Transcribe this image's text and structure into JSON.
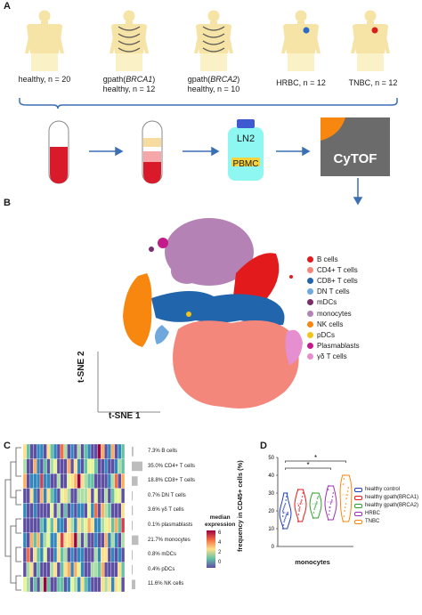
{
  "panels": {
    "a": "A",
    "b": "B",
    "c": "C",
    "d": "D"
  },
  "groups": [
    {
      "html": "healthy, n = 20"
    },
    {
      "html": "gpath(<i>BRCA1</i>)<br>healthy, n = 12"
    },
    {
      "html": "gpath(<i>BRCA2</i>)<br>healthy, n = 10"
    },
    {
      "html": "HRBC, n = 12"
    },
    {
      "html": "TNBC, n = 12"
    }
  ],
  "workflow": {
    "ln2_label": "LN2",
    "pbmc_label": "PBMC",
    "cytof_label": "CyTOF"
  },
  "tsne": {
    "xlabel": "t-SNE 1",
    "ylabel": "t-SNE 2",
    "legend": [
      {
        "label": "B cells",
        "color": "#e31a1c"
      },
      {
        "label": "CD4+ T cells",
        "color": "#f4877c"
      },
      {
        "label": "CD8+ T cells",
        "color": "#2166ac"
      },
      {
        "label": "DN T cells",
        "color": "#6fa8dc"
      },
      {
        "label": "mDCs",
        "color": "#7b2d6a"
      },
      {
        "label": "monocytes",
        "color": "#b582b5"
      },
      {
        "label": "NK cells",
        "color": "#f7870f"
      },
      {
        "label": "pDCs",
        "color": "#f0c419"
      },
      {
        "label": "Plasmablasts",
        "color": "#c51b8a"
      },
      {
        "label": "γδ T cells",
        "color": "#e58fd0"
      }
    ]
  },
  "heatmap": {
    "row_labels": [
      "7.3% B cells",
      "35.0% CD4+ T cells",
      "18.8% CD8+ T cells",
      "0.7% DN T cells",
      "3.6% γδ T cells",
      "0.1% plasmablasts",
      "21.7% monocytes",
      "0.8% mDCs",
      "0.4% pDCs",
      "11.6% NK cells"
    ],
    "row_bars": [
      0.15,
      1.0,
      0.55,
      0.03,
      0.1,
      0.01,
      0.62,
      0.03,
      0.02,
      0.33
    ],
    "legend_title": "median\nexpression",
    "legend_ticks": [
      "6",
      "4",
      "2",
      "0"
    ]
  },
  "chart_data": {
    "type": "violin",
    "ylabel": "frequency in CD45+ cells (%)",
    "xlabel": "monocytes",
    "yticks": [
      "50",
      "40",
      "30",
      "20",
      "10",
      "0"
    ],
    "ylim": [
      0,
      50
    ],
    "series": [
      {
        "name": "healthy control",
        "color": "#1f3fbf",
        "values": [
          10,
          12,
          14,
          15,
          16,
          17,
          18,
          18,
          19,
          20,
          21,
          22,
          23,
          24,
          26,
          28,
          30,
          18,
          17,
          19
        ]
      },
      {
        "name": "healthy gpath(BRCA1)",
        "color": "#e31a1c",
        "values": [
          14,
          18,
          20,
          22,
          24,
          25,
          26,
          28,
          30,
          32,
          23,
          21
        ]
      },
      {
        "name": "healthy gpath(BRCA2)",
        "color": "#2ca02c",
        "values": [
          16,
          19,
          21,
          22,
          23,
          24,
          25,
          27,
          28,
          30
        ]
      },
      {
        "name": "HRBC",
        "color": "#9c2fb5",
        "values": [
          15,
          18,
          20,
          22,
          24,
          25,
          26,
          28,
          30,
          32,
          34,
          22
        ]
      },
      {
        "name": "TNBC",
        "color": "#f7870f",
        "values": [
          14,
          17,
          20,
          22,
          24,
          27,
          29,
          31,
          33,
          35,
          38,
          40
        ]
      }
    ],
    "significance": [
      {
        "from": 0,
        "to": 3,
        "label": "*"
      },
      {
        "from": 0,
        "to": 4,
        "label": "*"
      }
    ]
  }
}
